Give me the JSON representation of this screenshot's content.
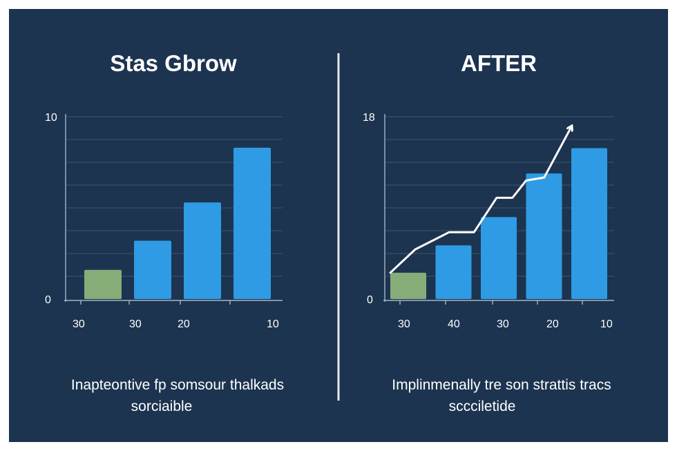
{
  "colors": {
    "background": "#1c3450",
    "bar_blue": "#2f9be4",
    "bar_green": "#86ad78",
    "text": "#ffffff",
    "grid": "#3b5670"
  },
  "chart_data": [
    {
      "type": "bar",
      "title": "Stas Gbrow",
      "categories": [
        "30",
        "30",
        "20",
        "10"
      ],
      "values": [
        1.6,
        3.2,
        5.3,
        8.3
      ],
      "bar_colors": [
        "#86ad78",
        "#2f9be4",
        "#2f9be4",
        "#2f9be4"
      ],
      "y_tick_labels": [
        "10",
        "0"
      ],
      "ylim": [
        0,
        10
      ],
      "grid": true,
      "caption_lines": [
        "Inapteontive fp somsour thalkads",
        "sorciaible"
      ]
    },
    {
      "type": "bar",
      "title": "AFTER",
      "categories": [
        "30",
        "40",
        "30",
        "20",
        "10"
      ],
      "values": [
        2.6,
        5.3,
        8.1,
        12.4,
        14.9
      ],
      "bar_colors": [
        "#86ad78",
        "#2f9be4",
        "#2f9be4",
        "#2f9be4",
        "#2f9be4"
      ],
      "y_tick_labels": [
        "18",
        "0"
      ],
      "ylim": [
        0,
        18
      ],
      "grid": true,
      "trend_line": [
        {
          "x": 0.0,
          "y": 2.6
        },
        {
          "x": 0.55,
          "y": 4.9
        },
        {
          "x": 1.3,
          "y": 6.6
        },
        {
          "x": 1.85,
          "y": 6.6
        },
        {
          "x": 2.35,
          "y": 10.0
        },
        {
          "x": 2.7,
          "y": 10.0
        },
        {
          "x": 3.0,
          "y": 11.7
        },
        {
          "x": 3.4,
          "y": 12.0
        },
        {
          "x": 4.0,
          "y": 17.0
        }
      ],
      "caption_lines": [
        "Implinmenally tre son strattis tracs",
        "sccciletide"
      ]
    }
  ]
}
